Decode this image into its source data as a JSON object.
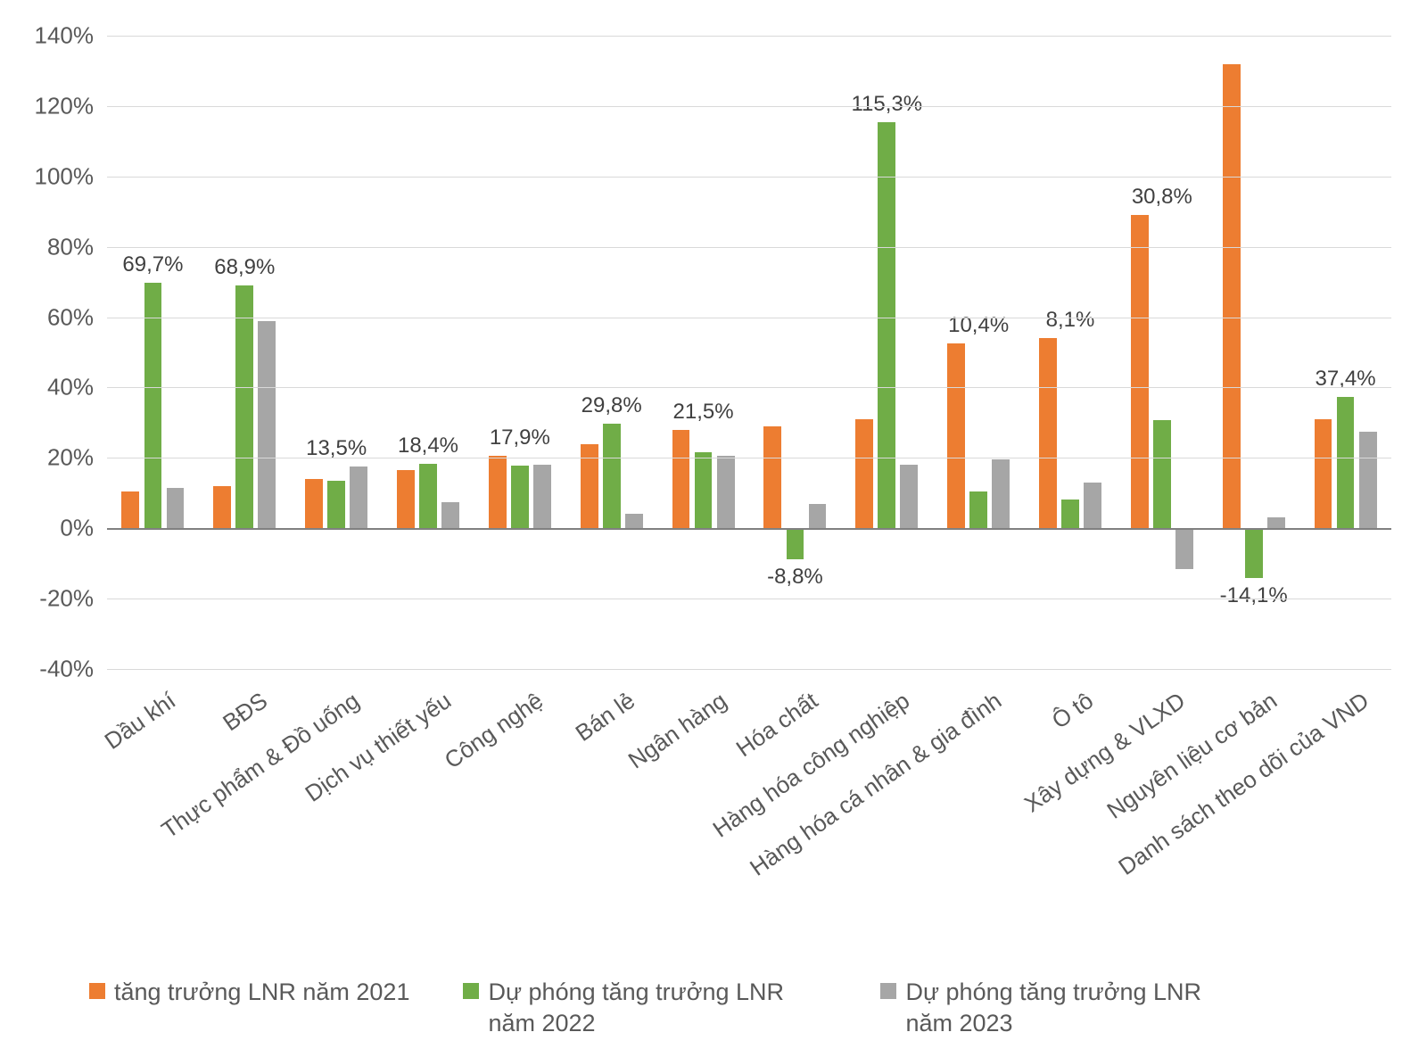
{
  "chart": {
    "type": "bar",
    "background_color": "#ffffff",
    "grid_color": "#d9d9d9",
    "axis_line_color": "#808080",
    "text_color": "#595959",
    "label_fontsize": 26,
    "data_label_fontsize": 24,
    "legend_fontsize": 27,
    "ylim": [
      -40,
      140
    ],
    "ytick_step": 20,
    "yticks": [
      -40,
      -20,
      0,
      20,
      40,
      60,
      80,
      100,
      120,
      140
    ],
    "ytick_labels": [
      "-40%",
      "-20%",
      "0%",
      "20%",
      "40%",
      "60%",
      "80%",
      "100%",
      "120%",
      "140%"
    ],
    "categories": [
      "Dầu khí",
      "BĐS",
      "Thực phẩm & Đồ uống",
      "Dịch vụ thiết yếu",
      "Công nghệ",
      "Bán lẻ",
      "Ngân hàng",
      "Hóa chất",
      "Hàng hóa công nghiệp",
      "Hàng hóa cá nhân & gia đình",
      "Ô tô",
      "Xây dựng & VLXD",
      "Nguyên liệu cơ bản",
      "Danh sách theo dõi của VND"
    ],
    "series": [
      {
        "name": "tăng trưởng LNR năm 2021",
        "color": "#ed7d31",
        "values": [
          10.5,
          12.0,
          14.0,
          16.5,
          20.5,
          24.0,
          28.0,
          29.0,
          31.0,
          52.5,
          54.0,
          89.0,
          132.0,
          31.0
        ]
      },
      {
        "name": "Dự phóng tăng trưởng LNR năm 2022",
        "color": "#70ad47",
        "values": [
          69.7,
          68.9,
          13.5,
          18.4,
          17.9,
          29.8,
          21.5,
          -8.8,
          115.3,
          10.4,
          8.1,
          30.8,
          -14.1,
          37.4
        ]
      },
      {
        "name": "Dự phóng tăng trưởng LNR năm 2023",
        "color": "#a6a6a6",
        "values": [
          11.5,
          59.0,
          17.5,
          7.5,
          18.0,
          4.0,
          20.5,
          7.0,
          18.0,
          19.5,
          13.0,
          -11.5,
          3.0,
          27.5
        ]
      }
    ],
    "visible_data_labels": [
      {
        "cat_index": 0,
        "series_index": 1,
        "text": "69,7%"
      },
      {
        "cat_index": 1,
        "series_index": 1,
        "text": "68,9%"
      },
      {
        "cat_index": 2,
        "series_index": 1,
        "text": "13,5%"
      },
      {
        "cat_index": 3,
        "series_index": 1,
        "text": "18,4%"
      },
      {
        "cat_index": 4,
        "series_index": 1,
        "text": "17,9%"
      },
      {
        "cat_index": 5,
        "series_index": 1,
        "text": "29,8%"
      },
      {
        "cat_index": 6,
        "series_index": 1,
        "text": "21,5%"
      },
      {
        "cat_index": 7,
        "series_index": 1,
        "text": "-8,8%"
      },
      {
        "cat_index": 8,
        "series_index": 1,
        "text": "115,3%"
      },
      {
        "cat_index": 9,
        "series_index": 1,
        "text": "10,4%"
      },
      {
        "cat_index": 10,
        "series_index": 1,
        "text": "8,1%"
      },
      {
        "cat_index": 11,
        "series_index": 1,
        "text": "30,8%"
      },
      {
        "cat_index": 12,
        "series_index": 1,
        "text": "-14,1%"
      },
      {
        "cat_index": 13,
        "series_index": 1,
        "text": "37,4%"
      }
    ],
    "bar_group_width_ratio": 0.68,
    "bar_gap_ratio": 0.15,
    "x_label_rotation_deg": -35
  }
}
